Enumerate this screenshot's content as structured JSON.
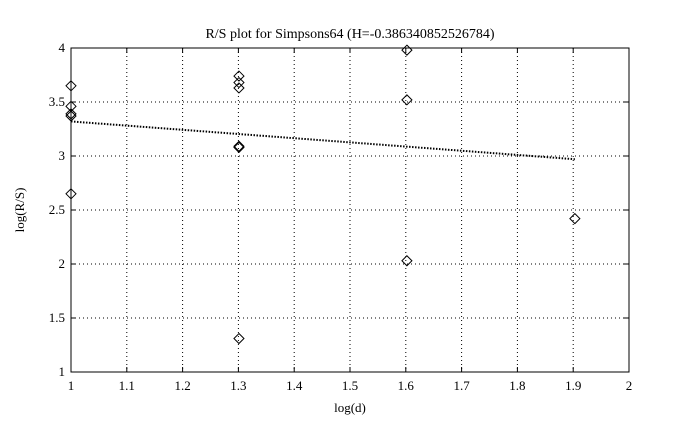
{
  "chart_data": {
    "type": "scatter",
    "title": "R/S plot for Simpsons64 (H=-0.386340852526784)",
    "xlabel": "log(d)",
    "ylabel": "log(R/S)",
    "xlim": [
      1,
      2
    ],
    "ylim": [
      1,
      4
    ],
    "x_ticks": [
      "1",
      "1.1",
      "1.2",
      "1.3",
      "1.4",
      "1.5",
      "1.6",
      "1.7",
      "1.8",
      "1.9",
      "2"
    ],
    "y_ticks": [
      "1",
      "1.5",
      "2",
      "2.5",
      "3",
      "3.5",
      "4"
    ],
    "grid": true,
    "marker": "diamond",
    "colors": {
      "markers": "#000000",
      "fit_line": "#000000",
      "grid": "#000000",
      "background": "#ffffff"
    },
    "points": [
      {
        "x": 1.0,
        "y": 3.65
      },
      {
        "x": 1.0,
        "y": 3.46
      },
      {
        "x": 1.0,
        "y": 3.39
      },
      {
        "x": 1.0,
        "y": 3.37
      },
      {
        "x": 1.0,
        "y": 2.65
      },
      {
        "x": 1.301,
        "y": 3.74
      },
      {
        "x": 1.301,
        "y": 3.68
      },
      {
        "x": 1.301,
        "y": 3.63
      },
      {
        "x": 1.301,
        "y": 3.09
      },
      {
        "x": 1.301,
        "y": 3.08
      },
      {
        "x": 1.301,
        "y": 1.31
      },
      {
        "x": 1.602,
        "y": 3.98
      },
      {
        "x": 1.602,
        "y": 3.52
      },
      {
        "x": 1.602,
        "y": 2.03
      },
      {
        "x": 1.903,
        "y": 2.42
      }
    ],
    "fit_line": {
      "style": "dotted",
      "x": [
        1.0,
        1.903
      ],
      "y": [
        3.32,
        2.97
      ]
    }
  }
}
